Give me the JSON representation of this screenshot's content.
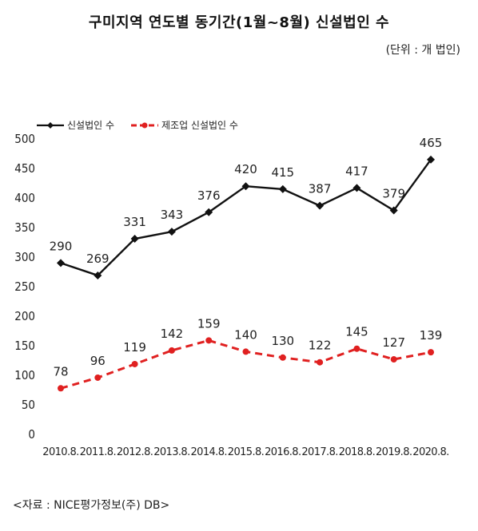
{
  "header": {
    "title": "구미지역 연도별 동기간(1월~8월) 신설법인 수",
    "unit": "(단위 : 개 법인)"
  },
  "footer": {
    "source": "<자료 : NICE평가정보(주) DB>"
  },
  "chart_data": {
    "type": "line",
    "title": "구미지역 연도별 동기간(1월~8월) 신설법인 수",
    "categories": [
      "2010.8.",
      "2011.8.",
      "2012.8.",
      "2013.8.",
      "2014.8.",
      "2015.8.",
      "2016.8.",
      "2017.8.",
      "2018.8.",
      "2019.8.",
      "2020.8."
    ],
    "series": [
      {
        "name": "신설법인 수",
        "values": [
          290,
          269,
          331,
          343,
          376,
          420,
          415,
          387,
          417,
          379,
          465
        ],
        "color": "#111111",
        "style": "solid"
      },
      {
        "name": "제조업 신설법인 수",
        "values": [
          78,
          96,
          119,
          142,
          159,
          140,
          130,
          122,
          145,
          127,
          139
        ],
        "color": "#e02020",
        "style": "dashed"
      }
    ],
    "ylim": [
      0,
      500
    ],
    "yticks": [
      0,
      50,
      100,
      150,
      200,
      250,
      300,
      350,
      400,
      450,
      500
    ],
    "grid": false,
    "legend": "top-left"
  }
}
